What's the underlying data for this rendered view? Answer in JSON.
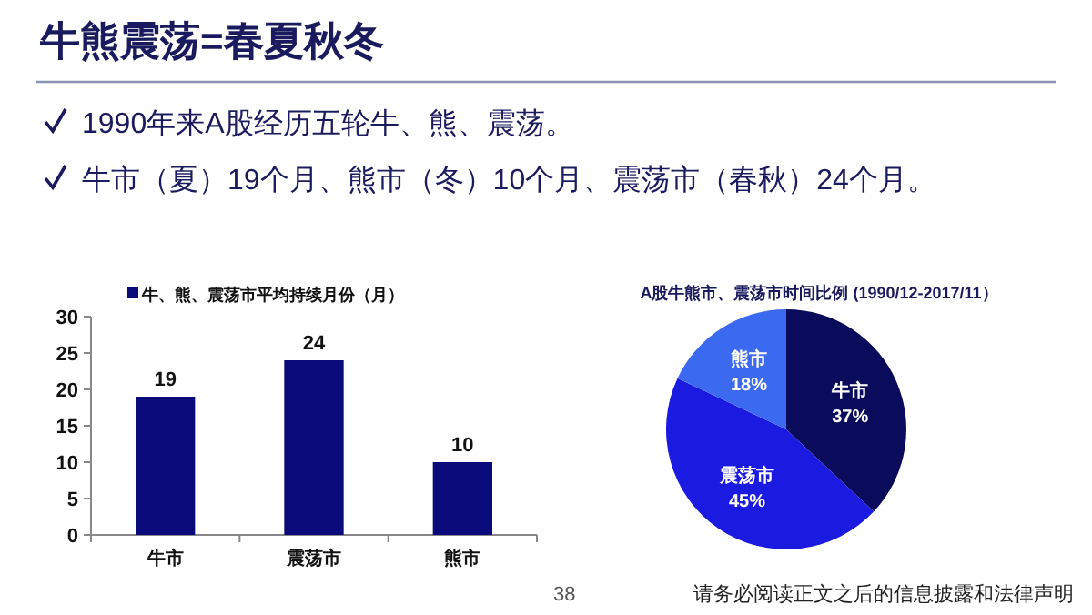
{
  "chart_data": [
    {
      "type": "other",
      "title": "牛熊震荡=春夏秋冬",
      "annotations": [
        "1990年来A股经历五轮牛、熊、震荡。",
        "牛市（夏）19个月、熊市（冬）10个月、震荡市（春秋）24个月。",
        "38",
        "请务必阅读正文之后的信息披露和法律声明"
      ]
    },
    {
      "type": "bar",
      "categories": [
        "牛市",
        "震荡市",
        "熊市"
      ],
      "series": [
        {
          "name": "牛、熊、震荡市平均持续月份（月）",
          "color": "#0a0a7a",
          "values": [
            19,
            24,
            10
          ]
        }
      ],
      "ylim": [
        0,
        30
      ],
      "yticks": [
        0,
        5,
        10,
        15,
        20,
        25,
        30
      ],
      "data_labels": true,
      "legend": "top"
    },
    {
      "type": "pie",
      "title": "A股牛熊市、震荡市时间比例 (1990/12-2017/11）",
      "categories": [
        "牛市",
        "震荡市",
        "熊市"
      ],
      "values": [
        37,
        45,
        18
      ],
      "colors": [
        "#0b0b5c",
        "#1a1ae0",
        "#3b6af0"
      ],
      "value_labels": [
        "37%",
        "45%",
        "18%"
      ]
    }
  ]
}
